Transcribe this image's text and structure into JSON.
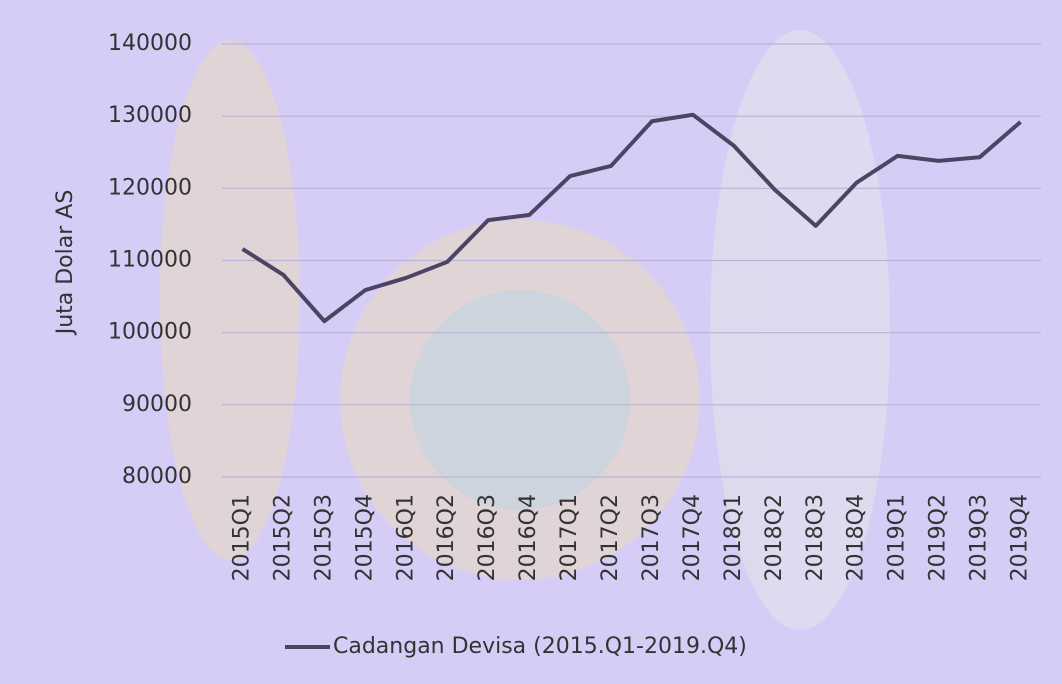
{
  "chart_data": {
    "type": "line",
    "y_label": "Juta Dolar AS",
    "categories": [
      "2015Q1",
      "2015Q2",
      "2015Q3",
      "2015Q4",
      "2016Q1",
      "2016Q2",
      "2016Q3",
      "2016Q4",
      "2017Q1",
      "2017Q2",
      "2017Q3",
      "2017Q4",
      "2018Q1",
      "2018Q2",
      "2018Q3",
      "2018Q4",
      "2019Q1",
      "2019Q2",
      "2019Q3",
      "2019Q4"
    ],
    "series": [
      {
        "name": "Cadangan Devisa (2015.Q1-2019.Q4)",
        "color": "#4b4563",
        "values": [
          111600,
          108000,
          101600,
          105900,
          107600,
          109800,
          115600,
          116300,
          121700,
          123100,
          129300,
          130200,
          125900,
          119800,
          114800,
          120800,
          124500,
          123800,
          124300,
          129200
        ]
      }
    ],
    "ylim": [
      80000,
      140000
    ],
    "yticks": [
      80000,
      90000,
      100000,
      110000,
      120000,
      130000,
      140000
    ],
    "grid": true,
    "legend": "bottom"
  }
}
